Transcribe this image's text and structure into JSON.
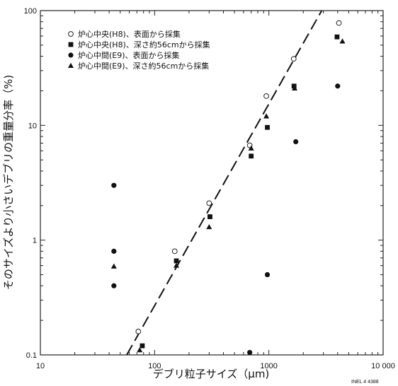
{
  "chart_data": {
    "type": "scatter",
    "xscale": "log",
    "yscale": "log",
    "xlim": [
      10,
      10000
    ],
    "ylim": [
      0.1,
      100
    ],
    "xlabel": "デブリ粒子サイズ（μm)",
    "ylabel": "そのサイズより小さいデブリの重量分率（%)",
    "x_tick_labels": [
      "10",
      "100",
      "1000",
      "10 000"
    ],
    "y_tick_labels": [
      "0.1",
      "1",
      "10",
      "100"
    ],
    "grid": false,
    "legend_position": "top-left",
    "series": [
      {
        "name": "炉心中央(H8)、表面から採集",
        "marker": "open-circle",
        "points": [
          [
            72,
            0.16
          ],
          [
            150,
            0.8
          ],
          [
            300,
            2.1
          ],
          [
            680,
            6.7
          ],
          [
            950,
            18
          ],
          [
            1650,
            38
          ],
          [
            4100,
            78
          ]
        ]
      },
      {
        "name": "炉心中央(H8)、深さ約56cmから採集",
        "marker": "filled-square",
        "points": [
          [
            78,
            0.12
          ],
          [
            155,
            0.66
          ],
          [
            305,
            1.6
          ],
          [
            700,
            5.4
          ],
          [
            970,
            9.6
          ],
          [
            1660,
            22
          ],
          [
            3950,
            59
          ]
        ]
      },
      {
        "name": "炉心中間(E9)、表面から採集",
        "marker": "filled-circle",
        "points": [
          [
            44,
            3
          ],
          [
            44,
            0.8
          ],
          [
            44,
            0.4
          ],
          [
            680,
            0.105
          ],
          [
            970,
            0.5
          ],
          [
            1720,
            7.2
          ],
          [
            4000,
            22
          ]
        ]
      },
      {
        "name": "炉心中間(E9)、深さ約56cmから採集",
        "marker": "filled-triangle",
        "points": [
          [
            44,
            0.59
          ],
          [
            74,
            0.11
          ],
          [
            155,
            0.6
          ],
          [
            300,
            1.3
          ],
          [
            700,
            6.3
          ],
          [
            950,
            12
          ],
          [
            1680,
            21
          ],
          [
            4400,
            54
          ]
        ]
      }
    ],
    "fit_line": {
      "style": "dashed",
      "points": [
        [
          57,
          0.1
        ],
        [
          2900,
          100
        ]
      ]
    },
    "annotation": "INEL 4 4388"
  }
}
